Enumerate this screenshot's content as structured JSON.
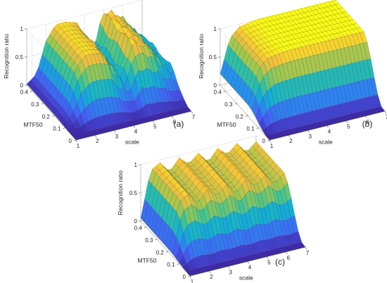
{
  "chart_data": [
    {
      "type": "surface",
      "panel_label": "(a)",
      "xlabel": "scale",
      "ylabel": "MTF50",
      "zlabel": "Recognition ratio",
      "x_ticks": [
        "1",
        "2",
        "3",
        "4",
        "5",
        "6",
        "7"
      ],
      "y_ticks": [
        "0",
        "0.1",
        "0.2",
        "0.3",
        "0.4"
      ],
      "z_ticks": [
        "0",
        "0.5",
        "1"
      ],
      "xlim": [
        1,
        7
      ],
      "ylim": [
        0,
        0.45
      ],
      "zlim": [
        0,
        1
      ],
      "colormap": "parula",
      "grid": true,
      "profile_scale": [
        1.0,
        1.5,
        2.0,
        2.5,
        3.0,
        3.5,
        4.0,
        4.5,
        5.0,
        5.5,
        6.0,
        6.5,
        7.0
      ],
      "profile_peak_ratio": [
        0.02,
        0.15,
        0.7,
        0.95,
        0.95,
        0.9,
        0.6,
        0.4,
        0.95,
        0.9,
        0.75,
        0.5,
        0.4
      ],
      "mtf50_threshold": 0.1
    },
    {
      "type": "surface",
      "panel_label": "(b)",
      "xlabel": "scale",
      "ylabel": "MTF50",
      "zlabel": "Recognition ratio",
      "x_ticks": [
        "1",
        "2",
        "3",
        "4",
        "5",
        "6",
        "7"
      ],
      "y_ticks": [
        "0",
        "0.1",
        "0.2",
        "0.3",
        "0.4"
      ],
      "z_ticks": [
        "0",
        "0.5",
        "1"
      ],
      "xlim": [
        1,
        7
      ],
      "ylim": [
        0,
        0.45
      ],
      "zlim": [
        0,
        1
      ],
      "colormap": "parula",
      "grid": true,
      "profile_scale": [
        1.0,
        1.5,
        2.0,
        2.5,
        3.0,
        3.5,
        4.0,
        4.5,
        5.0,
        5.5,
        6.0,
        6.5,
        7.0
      ],
      "profile_peak_ratio": [
        0.2,
        0.8,
        0.95,
        0.98,
        1.0,
        1.0,
        1.0,
        1.0,
        1.0,
        1.0,
        1.0,
        1.0,
        1.0
      ],
      "mtf50_threshold": 0.1
    },
    {
      "type": "surface",
      "panel_label": "(c)",
      "xlabel": "scale",
      "ylabel": "MTF50",
      "zlabel": "Recognition ratio",
      "x_ticks": [
        "1",
        "2",
        "3",
        "4",
        "5",
        "6",
        "7"
      ],
      "y_ticks": [
        "0",
        "0.1",
        "0.2",
        "0.3",
        "0.4"
      ],
      "z_ticks": [
        "0",
        "0.5",
        "1"
      ],
      "xlim": [
        1,
        7
      ],
      "ylim": [
        0,
        0.45
      ],
      "zlim": [
        0,
        1
      ],
      "colormap": "parula",
      "grid": true,
      "profile_scale": [
        1.0,
        1.5,
        2.0,
        2.5,
        3.0,
        3.5,
        4.0,
        4.5,
        5.0,
        5.5,
        6.0,
        6.5,
        7.0
      ],
      "profile_peak_ratio": [
        0.05,
        0.85,
        0.95,
        0.75,
        0.95,
        0.8,
        0.95,
        0.75,
        0.95,
        0.8,
        0.95,
        0.75,
        0.9
      ],
      "mtf50_threshold": 0.1
    }
  ]
}
